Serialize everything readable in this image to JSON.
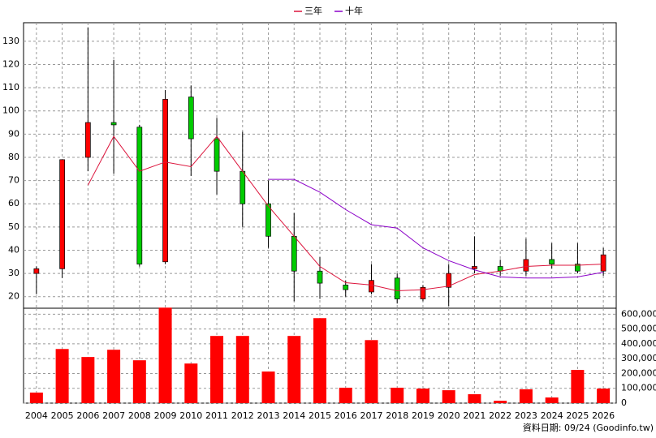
{
  "chart_data": [
    {
      "type": "candlestick",
      "categories": [
        "2004",
        "2005",
        "2006",
        "2007",
        "2008",
        "2009",
        "2010",
        "2011",
        "2012",
        "2013",
        "2014",
        "2015",
        "2016",
        "2017",
        "2018",
        "2019",
        "2020",
        "2021",
        "2022",
        "2023",
        "2024",
        "2025",
        "2026"
      ],
      "open": [
        30,
        32,
        80,
        95,
        93,
        35,
        106,
        88,
        74,
        60,
        46,
        31,
        25,
        22,
        28,
        19,
        24,
        32,
        33,
        31,
        36,
        34,
        31
      ],
      "high": [
        33,
        79,
        136,
        122,
        94,
        109,
        111,
        97,
        91,
        70,
        56,
        37,
        27,
        34,
        30,
        25,
        34,
        46,
        36,
        45,
        43,
        43,
        41
      ],
      "low": [
        21,
        28,
        74,
        73,
        33,
        34,
        72,
        64,
        50,
        41,
        18,
        19,
        20,
        21,
        17,
        18,
        16,
        30,
        29,
        29,
        32,
        30,
        29
      ],
      "close": [
        32,
        79,
        95,
        94,
        34,
        105,
        88,
        74,
        60,
        46,
        31,
        25.8,
        23,
        27,
        19,
        24,
        30,
        33,
        31,
        36,
        34,
        31,
        38
      ],
      "up_color": "#ff0000",
      "down_color": "#00cc00",
      "series": [
        {
          "name": "三年",
          "color": "#dc143c",
          "values": [
            null,
            null,
            68,
            89,
            74,
            78,
            76,
            89,
            74,
            59,
            46,
            33,
            26,
            25,
            22.5,
            23,
            24.5,
            29.5,
            31,
            33,
            33.5,
            33.5,
            34
          ]
        },
        {
          "name": "十年",
          "color": "#8b00c8",
          "values": [
            null,
            null,
            null,
            null,
            null,
            null,
            null,
            null,
            null,
            70.5,
            70.5,
            65,
            57.5,
            51,
            49.5,
            41,
            35.5,
            31.5,
            28.5,
            28,
            28,
            28.5,
            30.5
          ]
        }
      ],
      "ylim": [
        15,
        138
      ],
      "yticks": [
        20,
        30,
        40,
        50,
        60,
        70,
        80,
        90,
        100,
        110,
        120,
        130
      ],
      "grid": true,
      "legend": "top"
    },
    {
      "type": "bar",
      "categories": [
        "2004",
        "2005",
        "2006",
        "2007",
        "2008",
        "2009",
        "2010",
        "2011",
        "2012",
        "2013",
        "2014",
        "2015",
        "2016",
        "2017",
        "2018",
        "2019",
        "2020",
        "2021",
        "2022",
        "2023",
        "2024",
        "2025",
        "2026"
      ],
      "values": [
        71000,
        365000,
        311000,
        360000,
        289000,
        644000,
        267000,
        453000,
        453000,
        213000,
        453000,
        573000,
        104000,
        425000,
        104000,
        98000,
        87000,
        60000,
        16000,
        93000,
        38000,
        224000,
        98000
      ],
      "color": "#ff0000",
      "ylim": [
        0,
        640000
      ],
      "yticks": [
        0,
        {
          "value": 100000,
          "label": "100,000"
        },
        {
          "value": 200000,
          "label": "200,000"
        },
        {
          "value": 300000,
          "label": "300,000"
        },
        {
          "value": 400000,
          "label": "400,000"
        },
        {
          "value": 500000,
          "label": "500,000"
        },
        {
          "value": 600000,
          "label": "600,000"
        }
      ],
      "grid": true
    }
  ],
  "footer": "資料日期: 09/24 (Goodinfo.tw)"
}
